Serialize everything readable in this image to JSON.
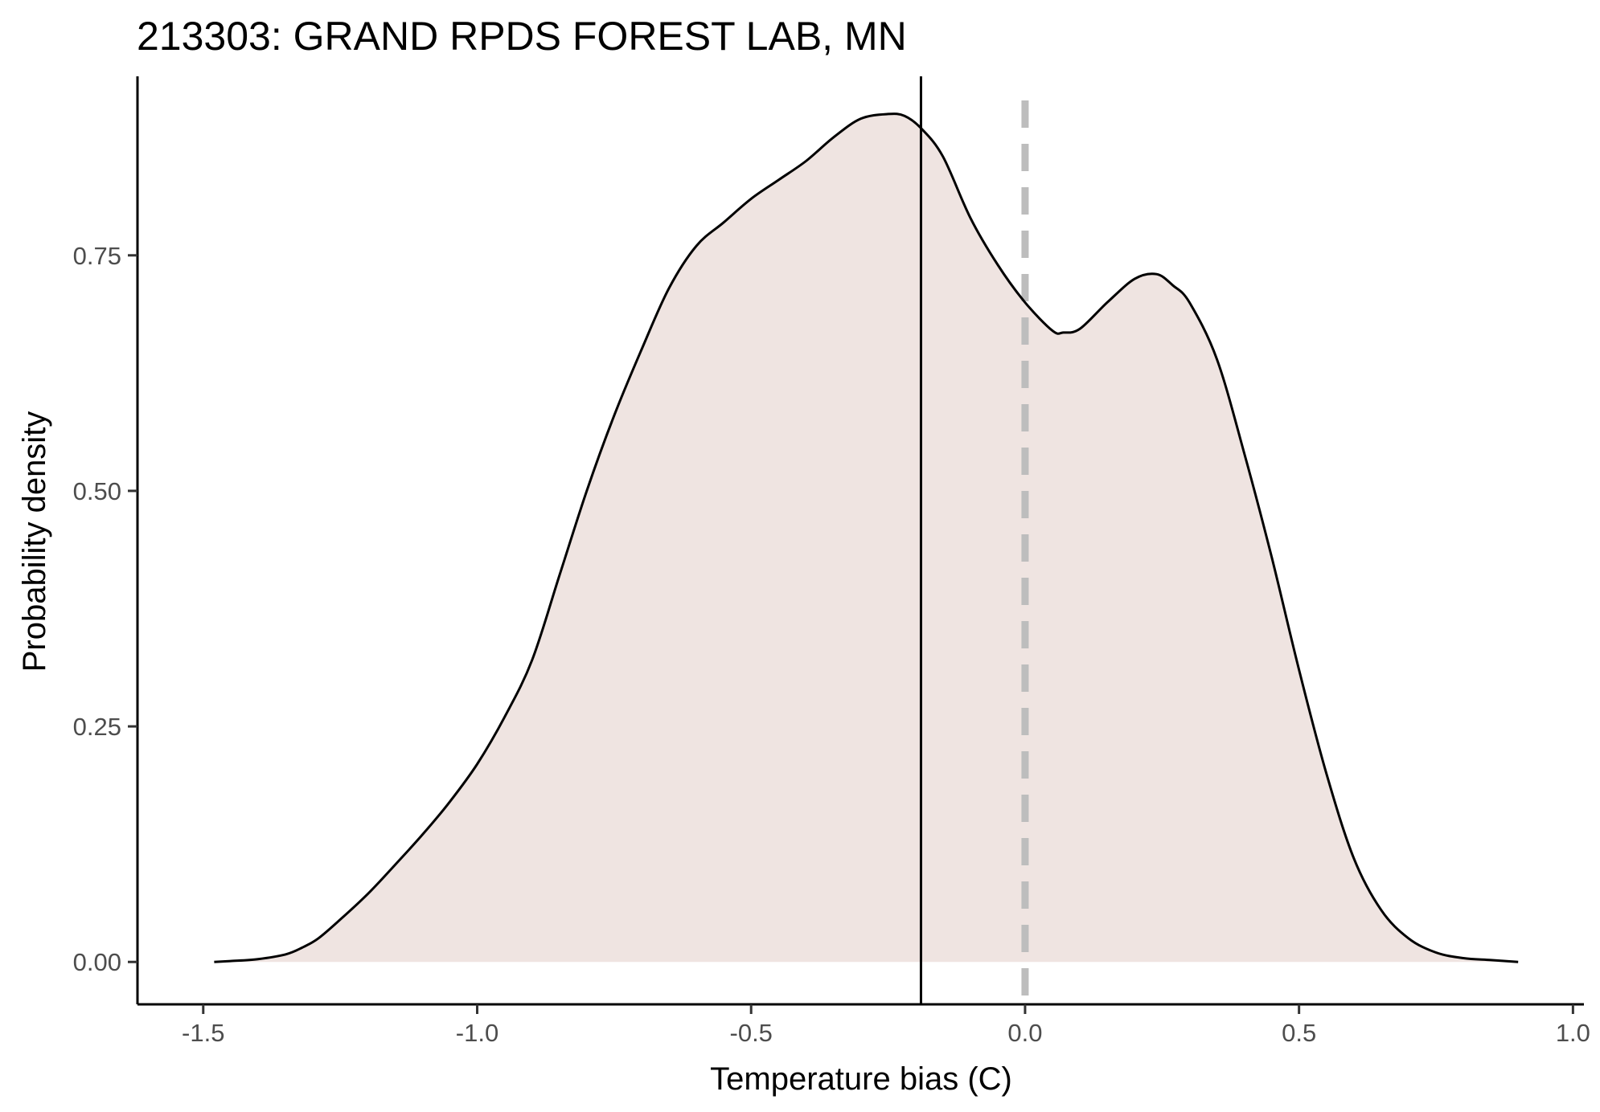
{
  "chart_data": {
    "type": "area",
    "title": "213303: GRAND RPDS FOREST LAB, MN",
    "xlabel": "Temperature bias (C)",
    "ylabel": "Probability density",
    "xlim": [
      -1.62,
      1.02
    ],
    "ylim": [
      -0.045,
      0.94
    ],
    "x_ticks": [
      -1.5,
      -1.0,
      -0.5,
      0.0,
      0.5,
      1.0
    ],
    "x_tick_labels": [
      "-1.5",
      "-1.0",
      "-0.5",
      "0.0",
      "0.5",
      "1.0"
    ],
    "y_ticks": [
      0.0,
      0.25,
      0.5,
      0.75
    ],
    "y_tick_labels": [
      "0.00",
      "0.25",
      "0.50",
      "0.75"
    ],
    "grid": false,
    "legend": "none",
    "fill_color": "#efe4e1",
    "line_color": "#000000",
    "reference_lines": [
      {
        "name": "mean-bias",
        "x": -0.19,
        "style": "solid",
        "color": "#000000"
      },
      {
        "name": "zero-bias",
        "x": 0.0,
        "style": "dashed",
        "color": "#bdbdbd"
      }
    ],
    "series": [
      {
        "x": [
          -1.48,
          -1.45,
          -1.4,
          -1.35,
          -1.32,
          -1.29,
          -1.25,
          -1.2,
          -1.15,
          -1.1,
          -1.05,
          -1.0,
          -0.95,
          -0.9,
          -0.85,
          -0.8,
          -0.75,
          -0.7,
          -0.65,
          -0.6,
          -0.55,
          -0.5,
          -0.45,
          -0.4,
          -0.35,
          -0.3,
          -0.25,
          -0.22,
          -0.19,
          -0.15,
          -0.1,
          -0.05,
          0.0,
          0.05,
          0.07,
          0.1,
          0.15,
          0.2,
          0.24,
          0.27,
          0.3,
          0.35,
          0.4,
          0.45,
          0.5,
          0.55,
          0.6,
          0.65,
          0.7,
          0.75,
          0.8,
          0.85,
          0.9
        ],
        "y": [
          0.0,
          0.001,
          0.003,
          0.008,
          0.015,
          0.025,
          0.045,
          0.072,
          0.103,
          0.135,
          0.17,
          0.21,
          0.26,
          0.32,
          0.41,
          0.5,
          0.58,
          0.65,
          0.715,
          0.76,
          0.785,
          0.81,
          0.83,
          0.85,
          0.875,
          0.895,
          0.9,
          0.898,
          0.885,
          0.855,
          0.79,
          0.74,
          0.7,
          0.67,
          0.668,
          0.672,
          0.7,
          0.725,
          0.73,
          0.718,
          0.7,
          0.64,
          0.54,
          0.43,
          0.31,
          0.2,
          0.11,
          0.055,
          0.025,
          0.01,
          0.004,
          0.002,
          0.0
        ]
      }
    ]
  }
}
